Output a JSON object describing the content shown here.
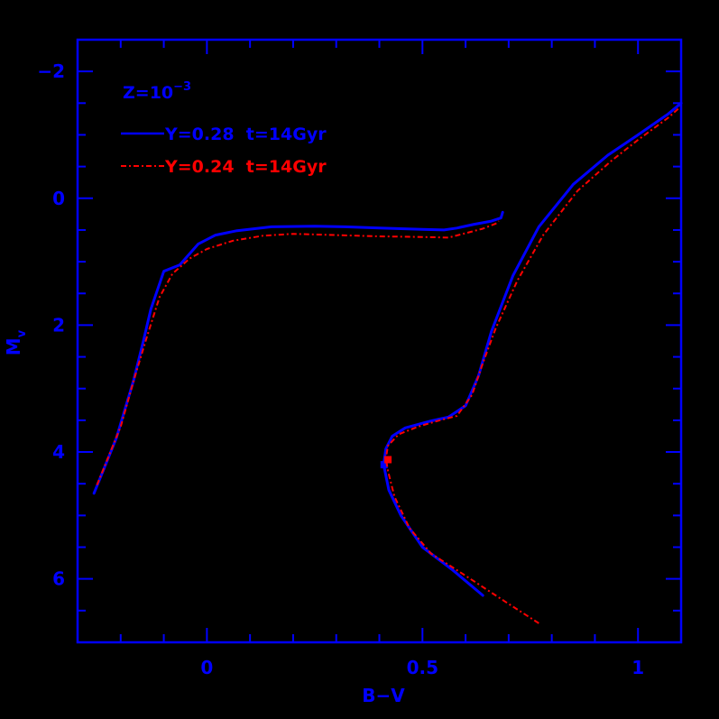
{
  "chart_data": {
    "type": "line",
    "title": "",
    "xlabel": "B−V",
    "ylabel": "M",
    "ylabel_subscript": "v",
    "xlim": [
      -0.3,
      1.1
    ],
    "ylim": [
      7,
      -2.5
    ],
    "y_inverted": true,
    "grid": false,
    "x_major_ticks": [
      0,
      0.5,
      1
    ],
    "x_tick_labels": [
      "0",
      "0.5",
      "1"
    ],
    "x_minor_step": 0.1,
    "y_major_ticks": [
      -2,
      0,
      2,
      4,
      6
    ],
    "y_tick_labels": [
      "−2",
      "0",
      "2",
      "4",
      "6"
    ],
    "y_minor_step": 0.5,
    "legend": {
      "position": "upper-left",
      "header": "Z=10",
      "header_superscript": "−3",
      "entries": [
        {
          "label": "Y=0.28  t=14Gyr",
          "color": "#0000ff",
          "style": "solid"
        },
        {
          "label": "Y=0.24  t=14Gyr",
          "color": "#ff0000",
          "style": "dash-dot"
        }
      ]
    },
    "series": [
      {
        "name": "Y=0.28 t=14Gyr",
        "color": "#0000ff",
        "style": "solid",
        "segments": [
          {
            "part": "horizontal-branch",
            "points": [
              [
                -0.262,
                4.65
              ],
              [
                -0.21,
                3.78
              ],
              [
                -0.17,
                2.87
              ],
              [
                -0.147,
                2.24
              ],
              [
                -0.13,
                1.75
              ],
              [
                -0.1,
                1.15
              ],
              [
                -0.063,
                1.05
              ],
              [
                -0.02,
                0.72
              ],
              [
                0.02,
                0.58
              ],
              [
                0.07,
                0.51
              ],
              [
                0.15,
                0.45
              ],
              [
                0.25,
                0.44
              ],
              [
                0.32,
                0.45
              ],
              [
                0.4,
                0.47
              ],
              [
                0.5,
                0.49
              ],
              [
                0.55,
                0.5
              ],
              [
                0.58,
                0.47
              ],
              [
                0.62,
                0.41
              ],
              [
                0.66,
                0.36
              ],
              [
                0.682,
                0.31
              ],
              [
                0.686,
                0.22
              ]
            ]
          },
          {
            "part": "main-sequence-to-giant-branch",
            "points": [
              [
                0.64,
                6.26
              ],
              [
                0.57,
                5.86
              ],
              [
                0.5,
                5.5
              ],
              [
                0.45,
                5.0
              ],
              [
                0.422,
                4.6
              ],
              [
                0.41,
                4.2
              ],
              [
                0.415,
                3.95
              ],
              [
                0.43,
                3.75
              ],
              [
                0.46,
                3.62
              ],
              [
                0.52,
                3.51
              ],
              [
                0.56,
                3.45
              ],
              [
                0.6,
                3.27
              ],
              [
                0.63,
                2.8
              ],
              [
                0.66,
                2.1
              ],
              [
                0.71,
                1.22
              ],
              [
                0.77,
                0.45
              ],
              [
                0.85,
                -0.22
              ],
              [
                0.93,
                -0.68
              ],
              [
                1.0,
                -1.0
              ],
              [
                1.07,
                -1.33
              ],
              [
                1.1,
                -1.5
              ]
            ]
          }
        ],
        "turnoff_marker": [
          0.411,
          4.2
        ]
      },
      {
        "name": "Y=0.24 t=14Gyr",
        "color": "#ff0000",
        "style": "dash-dot",
        "segments": [
          {
            "part": "horizontal-branch",
            "points": [
              [
                -0.255,
                4.52
              ],
              [
                -0.2,
                3.6
              ],
              [
                -0.168,
                2.83
              ],
              [
                -0.14,
                2.2
              ],
              [
                -0.11,
                1.56
              ],
              [
                -0.08,
                1.19
              ],
              [
                -0.04,
                0.95
              ],
              [
                0.0,
                0.8
              ],
              [
                0.06,
                0.67
              ],
              [
                0.13,
                0.59
              ],
              [
                0.2,
                0.56
              ],
              [
                0.3,
                0.58
              ],
              [
                0.4,
                0.6
              ],
              [
                0.5,
                0.61
              ],
              [
                0.56,
                0.62
              ],
              [
                0.6,
                0.55
              ],
              [
                0.64,
                0.48
              ],
              [
                0.67,
                0.4
              ],
              [
                0.677,
                0.36
              ]
            ]
          },
          {
            "part": "main-sequence-to-giant-branch",
            "points": [
              [
                0.77,
                6.7
              ],
              [
                0.69,
                6.35
              ],
              [
                0.6,
                5.95
              ],
              [
                0.52,
                5.6
              ],
              [
                0.47,
                5.2
              ],
              [
                0.435,
                4.7
              ],
              [
                0.42,
                4.3
              ],
              [
                0.415,
                4.1
              ],
              [
                0.42,
                3.9
              ],
              [
                0.445,
                3.72
              ],
              [
                0.49,
                3.6
              ],
              [
                0.54,
                3.5
              ],
              [
                0.58,
                3.43
              ],
              [
                0.615,
                3.1
              ],
              [
                0.64,
                2.6
              ],
              [
                0.67,
                2.05
              ],
              [
                0.72,
                1.3
              ],
              [
                0.78,
                0.58
              ],
              [
                0.86,
                -0.12
              ],
              [
                0.94,
                -0.6
              ],
              [
                1.0,
                -0.92
              ],
              [
                1.07,
                -1.27
              ],
              [
                1.1,
                -1.45
              ]
            ]
          }
        ],
        "turnoff_marker": [
          0.42,
          4.12
        ]
      }
    ]
  },
  "colors": {
    "background": "#000000",
    "axes": "#0000ff",
    "series_a": "#0000ff",
    "series_b": "#ff0000"
  }
}
